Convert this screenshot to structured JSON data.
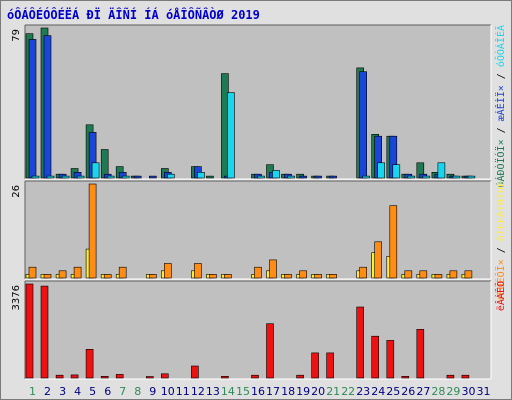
{
  "title": "óÔÁÔÉÓÔÉËÁ ĐÏ ÄÎÑÍ ÍÁ óÅÎÔÑÂÒØ 2019",
  "colors": {
    "background": "#e0e0e0",
    "panel": "#c0c0c0",
    "title": "#0000cc",
    "hits": "#1e7a52",
    "files": "#1b45d8",
    "pages": "#19d6ee",
    "visits": "#ffee33",
    "sites": "#ff8c14",
    "kbytes": "#ee1111",
    "weekday": "#000080",
    "weekend": "#2e8b57"
  },
  "chart_data": [
    {
      "type": "bar",
      "panel": "top",
      "ymax_label": "79",
      "ylim": [
        0,
        79
      ],
      "x": [
        1,
        2,
        3,
        4,
        5,
        6,
        7,
        8,
        9,
        10,
        11,
        12,
        13,
        14,
        15,
        16,
        17,
        18,
        19,
        20,
        21,
        22,
        23,
        24,
        25,
        26,
        27,
        28,
        29,
        30,
        31
      ],
      "side_labels": [
        {
          "text": "úÁÐÒÏÓÏ×",
          "color": "#1e7a52"
        },
        {
          "text": " / ",
          "color": "#000000"
        },
        {
          "text": "æÁÊÌÏ×",
          "color": "#1b45d8"
        },
        {
          "text": " / ",
          "color": "#000000"
        },
        {
          "text": "óÔÒÁÎÉÃ",
          "color": "#19d6ee"
        }
      ],
      "series": [
        {
          "key": "hits",
          "values": [
            76,
            79,
            2,
            5,
            28,
            15,
            6,
            1,
            0,
            5,
            0,
            6,
            1,
            55,
            0,
            2,
            7,
            2,
            2,
            1,
            1,
            0,
            58,
            23,
            22,
            2,
            8,
            3,
            2,
            1,
            0
          ]
        },
        {
          "key": "files",
          "values": [
            73,
            75,
            2,
            3,
            24,
            2,
            3,
            1,
            1,
            3,
            0,
            6,
            0,
            1,
            0,
            2,
            3,
            2,
            1,
            1,
            1,
            0,
            56,
            22,
            22,
            2,
            2,
            2,
            1,
            1,
            0
          ]
        },
        {
          "key": "pages",
          "values": [
            1,
            1,
            1,
            1,
            8,
            1,
            1,
            0,
            0,
            2,
            0,
            3,
            0,
            45,
            0,
            1,
            4,
            1,
            0,
            0,
            0,
            0,
            1,
            8,
            7,
            1,
            1,
            8,
            1,
            1,
            0
          ]
        }
      ]
    },
    {
      "type": "bar",
      "panel": "middle",
      "ymax_label": "26",
      "ylim": [
        0,
        26
      ],
      "x": [
        1,
        2,
        3,
        4,
        5,
        6,
        7,
        8,
        9,
        10,
        11,
        12,
        13,
        14,
        15,
        16,
        17,
        18,
        19,
        20,
        21,
        22,
        23,
        24,
        25,
        26,
        27,
        28,
        29,
        30,
        31
      ],
      "side_labels": [
        {
          "text": "÷ÉÚÉÔÏ×",
          "color": "#ff8c14"
        },
        {
          "text": " / ",
          "color": "#000000"
        },
        {
          "text": "õÎÉËÁÌØÎÙÈ",
          "color": "#ffee33"
        }
      ],
      "series": [
        {
          "key": "visits",
          "values": [
            1,
            1,
            1,
            1,
            8,
            1,
            1,
            0,
            1,
            2,
            0,
            2,
            1,
            1,
            0,
            1,
            2,
            1,
            1,
            1,
            1,
            0,
            2,
            7,
            6,
            1,
            1,
            1,
            1,
            1,
            0
          ]
        },
        {
          "key": "sites",
          "values": [
            3,
            1,
            2,
            3,
            26,
            1,
            3,
            0,
            1,
            4,
            0,
            4,
            1,
            1,
            0,
            3,
            5,
            1,
            2,
            1,
            1,
            0,
            3,
            10,
            20,
            2,
            2,
            1,
            2,
            2,
            0
          ]
        }
      ]
    },
    {
      "type": "bar",
      "panel": "bottom",
      "ymax_label": "3376",
      "ylim": [
        0,
        3376
      ],
      "x": [
        1,
        2,
        3,
        4,
        5,
        6,
        7,
        8,
        9,
        10,
        11,
        12,
        13,
        14,
        15,
        16,
        17,
        18,
        19,
        20,
        21,
        22,
        23,
        24,
        25,
        26,
        27,
        28,
        29,
        30,
        31
      ],
      "side_labels": [
        {
          "text": "ëÂÁÊÔ",
          "color": "#ee1111"
        }
      ],
      "series": [
        {
          "key": "kbytes",
          "values": [
            3376,
            3300,
            100,
            110,
            1030,
            60,
            130,
            0,
            50,
            150,
            0,
            430,
            0,
            60,
            0,
            100,
            1950,
            0,
            100,
            900,
            900,
            0,
            2550,
            1500,
            1350,
            60,
            1750,
            0,
            100,
            100,
            0
          ]
        }
      ]
    }
  ],
  "x_labels": [
    {
      "text": "1",
      "weekend": true
    },
    {
      "text": "2",
      "weekend": false
    },
    {
      "text": "3",
      "weekend": false
    },
    {
      "text": "4",
      "weekend": false
    },
    {
      "text": "5",
      "weekend": false
    },
    {
      "text": "6",
      "weekend": false
    },
    {
      "text": "7",
      "weekend": true
    },
    {
      "text": "8",
      "weekend": true
    },
    {
      "text": "9",
      "weekend": false
    },
    {
      "text": "10",
      "weekend": false
    },
    {
      "text": "11",
      "weekend": false
    },
    {
      "text": "12",
      "weekend": false
    },
    {
      "text": "13",
      "weekend": false
    },
    {
      "text": "14",
      "weekend": true
    },
    {
      "text": "15",
      "weekend": true
    },
    {
      "text": "16",
      "weekend": false
    },
    {
      "text": "17",
      "weekend": false
    },
    {
      "text": "18",
      "weekend": false
    },
    {
      "text": "19",
      "weekend": false
    },
    {
      "text": "20",
      "weekend": false
    },
    {
      "text": "21",
      "weekend": true
    },
    {
      "text": "22",
      "weekend": true
    },
    {
      "text": "23",
      "weekend": false
    },
    {
      "text": "24",
      "weekend": false
    },
    {
      "text": "25",
      "weekend": false
    },
    {
      "text": "26",
      "weekend": false
    },
    {
      "text": "27",
      "weekend": false
    },
    {
      "text": "28",
      "weekend": true
    },
    {
      "text": "29",
      "weekend": true
    },
    {
      "text": "30",
      "weekend": false
    },
    {
      "text": "31",
      "weekend": false
    }
  ]
}
